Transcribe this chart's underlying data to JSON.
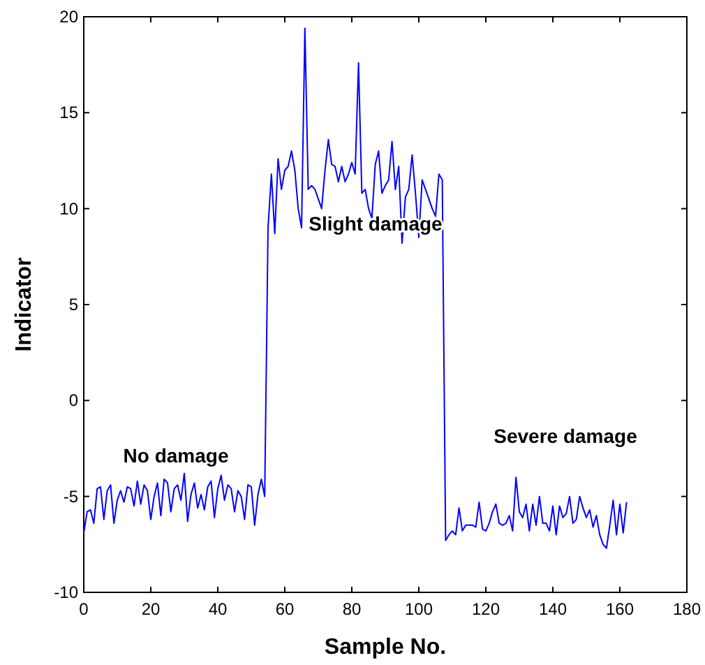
{
  "chart_data": {
    "type": "line",
    "xlabel": "Sample No.",
    "ylabel": "Indicator",
    "xlim": [
      0,
      180
    ],
    "ylim": [
      -10,
      20
    ],
    "xticks": [
      0,
      20,
      40,
      60,
      80,
      100,
      120,
      140,
      160,
      180
    ],
    "yticks": [
      -10,
      -5,
      0,
      5,
      10,
      15,
      20
    ],
    "grid": false,
    "marker": "none",
    "line_style": "solid",
    "annotations": [
      "No damage",
      "Slight damage",
      "Severe damage"
    ],
    "series": [
      {
        "color": "#0000ff",
        "x": [
          0,
          1,
          2,
          3,
          4,
          5,
          6,
          7,
          8,
          9,
          10,
          11,
          12,
          13,
          14,
          15,
          16,
          17,
          18,
          19,
          20,
          21,
          22,
          23,
          24,
          25,
          26,
          27,
          28,
          29,
          30,
          31,
          32,
          33,
          34,
          35,
          36,
          37,
          38,
          39,
          40,
          41,
          42,
          43,
          44,
          45,
          46,
          47,
          48,
          49,
          50,
          51,
          52,
          53,
          54,
          55,
          56,
          57,
          58,
          59,
          60,
          61,
          62,
          63,
          64,
          65,
          66,
          67,
          68,
          69,
          70,
          71,
          72,
          73,
          74,
          75,
          76,
          77,
          78,
          79,
          80,
          81,
          82,
          83,
          84,
          85,
          86,
          87,
          88,
          89,
          90,
          91,
          92,
          93,
          94,
          95,
          96,
          97,
          98,
          99,
          100,
          101,
          102,
          103,
          104,
          105,
          106,
          107,
          108,
          109,
          110,
          111,
          112,
          113,
          114,
          115,
          116,
          117,
          118,
          119,
          120,
          121,
          122,
          123,
          124,
          125,
          126,
          127,
          128,
          129,
          130,
          131,
          132,
          133,
          134,
          135,
          136,
          137,
          138,
          139,
          140,
          141,
          142,
          143,
          144,
          145,
          146,
          147,
          148,
          149,
          150,
          151,
          152,
          153,
          154,
          155,
          156,
          157,
          158,
          159,
          160,
          161,
          162
        ],
        "values": [
          -6.9,
          -5.8,
          -5.7,
          -6.4,
          -4.6,
          -4.5,
          -6.2,
          -4.7,
          -4.4,
          -6.4,
          -5.2,
          -4.7,
          -5.3,
          -4.5,
          -4.6,
          -5.5,
          -4.2,
          -5.4,
          -4.4,
          -4.7,
          -6.2,
          -5.0,
          -4.3,
          -6.0,
          -4.1,
          -4.3,
          -5.8,
          -4.6,
          -4.4,
          -5.2,
          -3.8,
          -6.3,
          -4.9,
          -4.3,
          -5.6,
          -4.9,
          -5.7,
          -4.5,
          -4.2,
          -6.1,
          -4.6,
          -3.9,
          -5.2,
          -4.4,
          -4.6,
          -5.8,
          -4.7,
          -5.0,
          -6.2,
          -4.4,
          -4.5,
          -6.5,
          -4.9,
          -4.1,
          -5.0,
          9.0,
          11.8,
          8.7,
          12.6,
          11.0,
          12.0,
          12.2,
          13.0,
          12.0,
          10.0,
          9.0,
          19.4,
          11.0,
          11.2,
          11.0,
          10.5,
          10.0,
          12.0,
          13.6,
          12.3,
          12.2,
          11.4,
          12.2,
          11.4,
          11.8,
          12.4,
          11.8,
          17.6,
          10.8,
          11.0,
          10.0,
          9.5,
          12.3,
          13.0,
          10.8,
          11.2,
          11.5,
          13.5,
          11.0,
          12.2,
          8.2,
          10.6,
          11.0,
          12.8,
          10.8,
          8.5,
          11.5,
          11.0,
          10.5,
          10.0,
          9.6,
          11.8,
          11.5,
          -7.3,
          -7.0,
          -6.8,
          -7.0,
          -5.6,
          -6.8,
          -6.5,
          -6.5,
          -6.5,
          -6.6,
          -5.3,
          -6.7,
          -6.8,
          -6.4,
          -5.8,
          -5.4,
          -6.4,
          -6.5,
          -6.4,
          -6.0,
          -6.8,
          -4.0,
          -5.8,
          -6.1,
          -5.4,
          -6.8,
          -5.4,
          -6.5,
          -5.0,
          -6.4,
          -6.4,
          -6.8,
          -5.5,
          -7.0,
          -5.5,
          -6.1,
          -5.9,
          -5.0,
          -6.4,
          -6.2,
          -5.0,
          -5.6,
          -6.1,
          -5.7,
          -6.6,
          -6.0,
          -7.0,
          -7.5,
          -7.7,
          -6.5,
          -5.2,
          -7.0,
          -5.4,
          -6.9,
          -5.3
        ]
      }
    ]
  }
}
